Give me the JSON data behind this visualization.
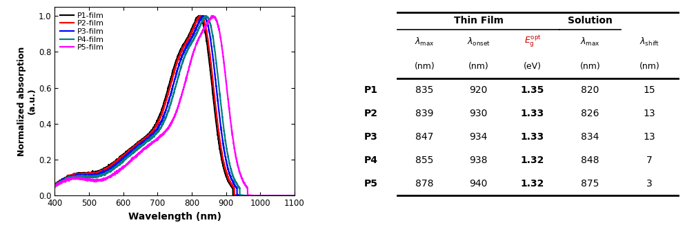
{
  "polymers": [
    "P1",
    "P2",
    "P3",
    "P4",
    "P5"
  ],
  "colors": [
    "#000000",
    "#ff0000",
    "#0000ff",
    "#008080",
    "#ff00ff"
  ],
  "labels": [
    "P1-film",
    "P2-film",
    "P3-film",
    "P4-film",
    "P5-film"
  ],
  "lambda_max_film": [
    835,
    839,
    847,
    855,
    878
  ],
  "lambda_onset": [
    920,
    930,
    934,
    938,
    940
  ],
  "Eg_opt": [
    1.35,
    1.33,
    1.33,
    1.32,
    1.32
  ],
  "lambda_max_sol": [
    820,
    826,
    834,
    848,
    875
  ],
  "lambda_shift": [
    15,
    13,
    13,
    7,
    3
  ],
  "xmin": 400,
  "xmax": 1100,
  "ymin": 0.0,
  "ymax": 1.05,
  "xlabel": "Wavelength (nm)",
  "ylabel": "Normalized absorption\n(a.u.)",
  "xticks": [
    400,
    500,
    600,
    700,
    800,
    900,
    1000,
    1100
  ],
  "yticks": [
    0.0,
    0.2,
    0.4,
    0.6,
    0.8,
    1.0
  ],
  "thin_film_header": "Thin Film",
  "solution_header": "Solution"
}
